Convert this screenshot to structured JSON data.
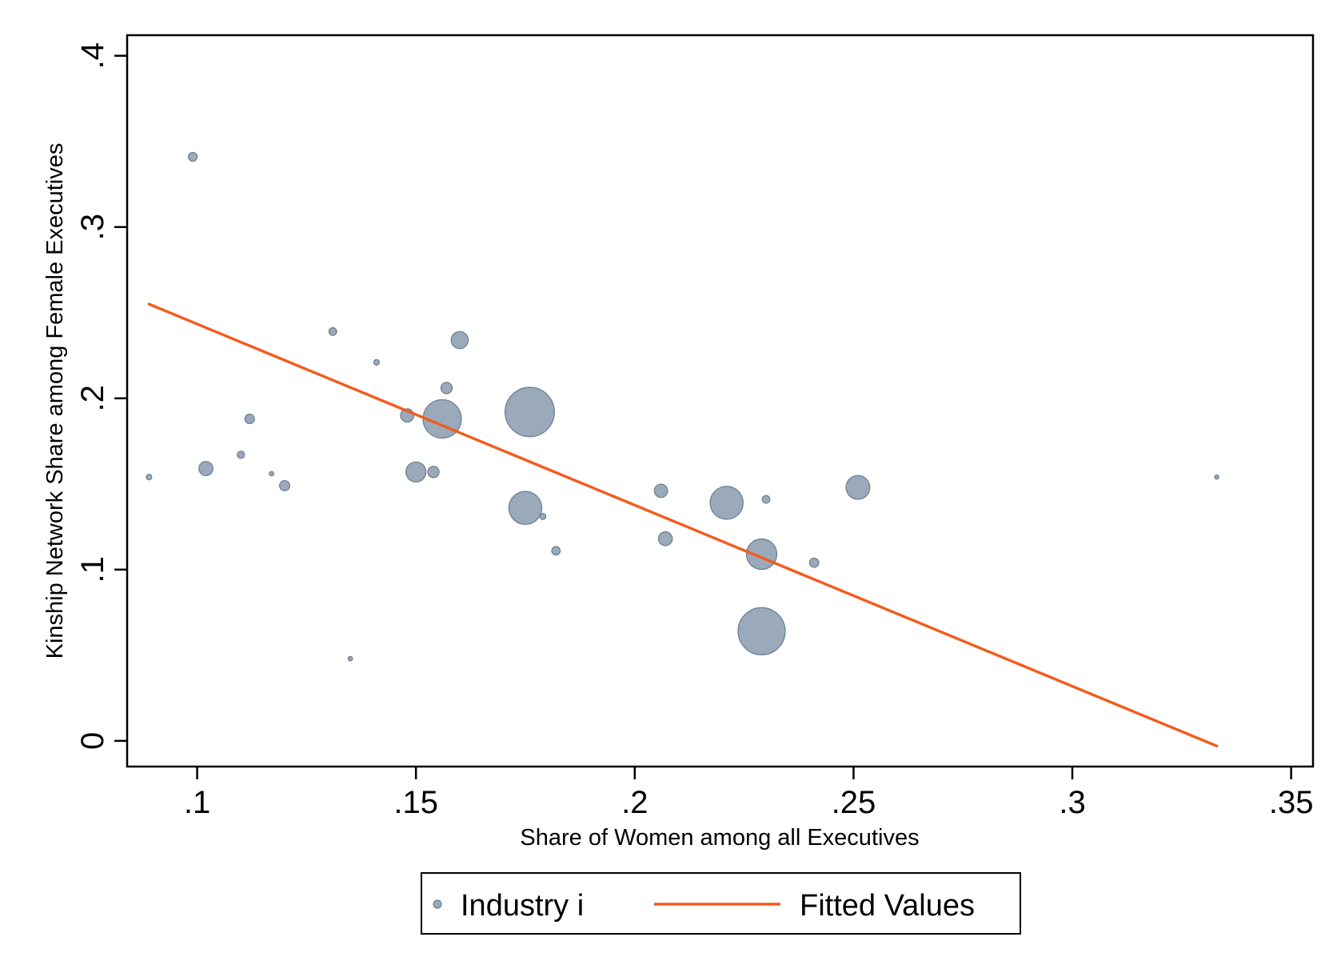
{
  "chart_data": {
    "type": "scatter",
    "xlabel": "Share of Women among all Executives",
    "ylabel": "Kinship Network Share among Female Executives",
    "xlim": [
      0.084,
      0.355
    ],
    "ylim": [
      -0.015,
      0.412
    ],
    "x_ticks": [
      {
        "value": 0.1,
        "label": ".1"
      },
      {
        "value": 0.15,
        "label": ".15"
      },
      {
        "value": 0.2,
        "label": ".2"
      },
      {
        "value": 0.25,
        "label": ".25"
      },
      {
        "value": 0.3,
        "label": ".3"
      },
      {
        "value": 0.35,
        "label": ".35"
      }
    ],
    "y_ticks": [
      {
        "value": 0.0,
        "label": "0"
      },
      {
        "value": 0.1,
        "label": ".1"
      },
      {
        "value": 0.2,
        "label": ".2"
      },
      {
        "value": 0.3,
        "label": ".3"
      },
      {
        "value": 0.4,
        "label": ".4"
      }
    ],
    "grid": false,
    "legend_position": "bottom",
    "series": [
      {
        "name": "Industry i",
        "kind": "scatter",
        "color": "#9aaabb",
        "points": [
          {
            "x": 0.089,
            "y": 0.154,
            "w": 0.3
          },
          {
            "x": 0.099,
            "y": 0.341,
            "w": 1
          },
          {
            "x": 0.102,
            "y": 0.159,
            "w": 3
          },
          {
            "x": 0.11,
            "y": 0.167,
            "w": 0.6
          },
          {
            "x": 0.112,
            "y": 0.188,
            "w": 1.2
          },
          {
            "x": 0.117,
            "y": 0.156,
            "w": 0.15
          },
          {
            "x": 0.12,
            "y": 0.149,
            "w": 1.4
          },
          {
            "x": 0.131,
            "y": 0.239,
            "w": 0.7
          },
          {
            "x": 0.135,
            "y": 0.048,
            "w": 0.15
          },
          {
            "x": 0.141,
            "y": 0.221,
            "w": 0.3
          },
          {
            "x": 0.148,
            "y": 0.19,
            "w": 2.6
          },
          {
            "x": 0.15,
            "y": 0.157,
            "w": 6.5
          },
          {
            "x": 0.154,
            "y": 0.157,
            "w": 1.8
          },
          {
            "x": 0.156,
            "y": 0.188,
            "w": 26
          },
          {
            "x": 0.157,
            "y": 0.206,
            "w": 1.8
          },
          {
            "x": 0.16,
            "y": 0.234,
            "w": 4.6
          },
          {
            "x": 0.175,
            "y": 0.136,
            "w": 19
          },
          {
            "x": 0.176,
            "y": 0.192,
            "w": 44
          },
          {
            "x": 0.179,
            "y": 0.131,
            "w": 0.35
          },
          {
            "x": 0.182,
            "y": 0.111,
            "w": 0.9
          },
          {
            "x": 0.206,
            "y": 0.146,
            "w": 2.6
          },
          {
            "x": 0.207,
            "y": 0.118,
            "w": 2.9
          },
          {
            "x": 0.221,
            "y": 0.139,
            "w": 19
          },
          {
            "x": 0.229,
            "y": 0.109,
            "w": 16
          },
          {
            "x": 0.229,
            "y": 0.064,
            "w": 40
          },
          {
            "x": 0.23,
            "y": 0.141,
            "w": 0.7
          },
          {
            "x": 0.241,
            "y": 0.104,
            "w": 1.1
          },
          {
            "x": 0.251,
            "y": 0.148,
            "w": 9.5
          },
          {
            "x": 0.333,
            "y": 0.154,
            "w": 0.12
          }
        ]
      },
      {
        "name": "Fitted Values",
        "kind": "line",
        "color": "#f35b1b",
        "points": [
          {
            "x": 0.089,
            "y": 0.255
          },
          {
            "x": 0.333,
            "y": -0.003
          }
        ]
      }
    ]
  }
}
